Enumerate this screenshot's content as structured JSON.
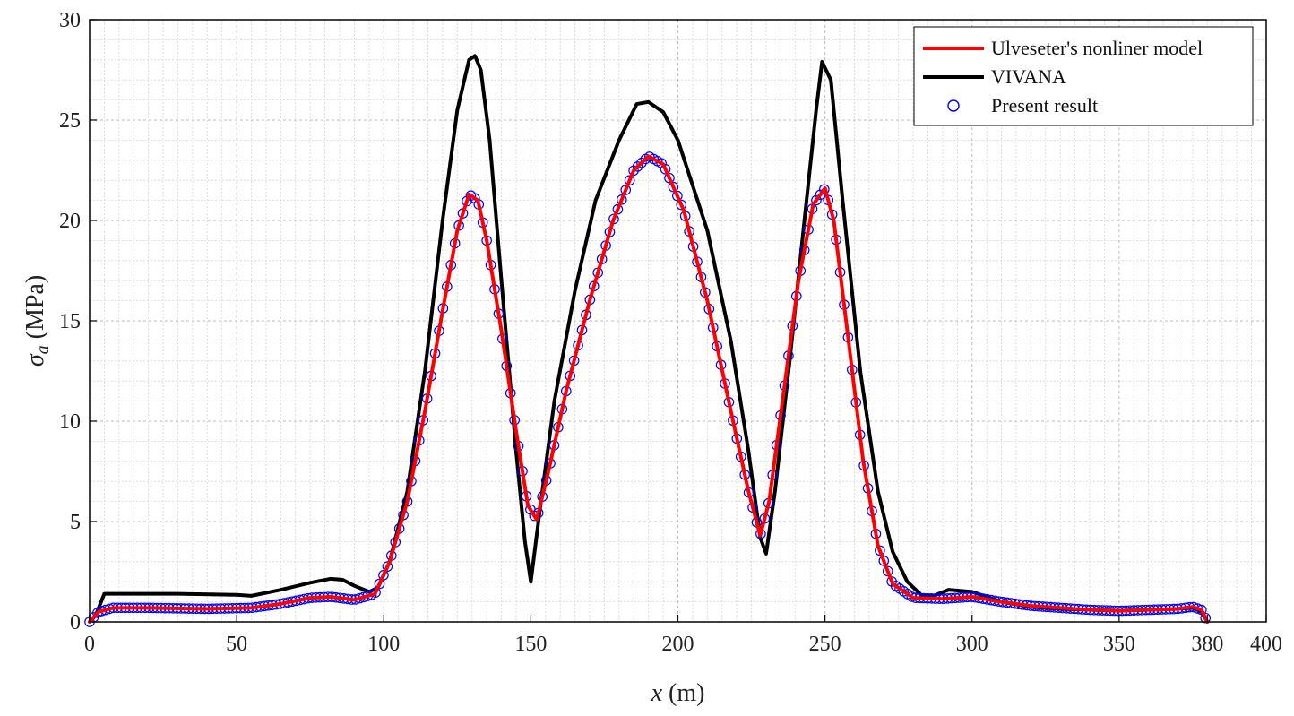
{
  "chart_data": {
    "type": "line",
    "title": "",
    "xlabel_var": "x",
    "xlabel_unit": " (m)",
    "ylabel_var": "σ",
    "ylabel_sub": "a",
    "ylabel_unit": " (MPa)",
    "xlim": [
      0,
      400
    ],
    "ylim": [
      0,
      30
    ],
    "x_ticks": [
      0,
      50,
      100,
      150,
      200,
      250,
      300,
      350,
      380,
      400
    ],
    "x_tick_labels": [
      "0",
      "50",
      "100",
      "150",
      "200",
      "250",
      "300",
      "350",
      "380",
      "400"
    ],
    "y_ticks": [
      0,
      5,
      10,
      15,
      20,
      25,
      30
    ],
    "y_tick_labels": [
      "0",
      "5",
      "10",
      "15",
      "20",
      "25",
      "30"
    ],
    "grid": true,
    "minor_grid": true,
    "legend_position": "top-right",
    "series": [
      {
        "name": "Ulveseter's nonliner model",
        "style": "line",
        "color": "#ff0000",
        "x": [
          0,
          3,
          8,
          20,
          40,
          55,
          65,
          75,
          82,
          90,
          97,
          102,
          108,
          114,
          120,
          125,
          129,
          132,
          135,
          140,
          145,
          149,
          152,
          156,
          162,
          170,
          178,
          185,
          190,
          195,
          202,
          210,
          218,
          224,
          228,
          231,
          236,
          241,
          246,
          250,
          253,
          258,
          263,
          268,
          273,
          280,
          290,
          300,
          310,
          320,
          330,
          340,
          350,
          360,
          370,
          375,
          378,
          380
        ],
        "y": [
          0,
          0.5,
          0.7,
          0.7,
          0.65,
          0.7,
          0.9,
          1.2,
          1.25,
          1.1,
          1.4,
          3.0,
          6.0,
          10.5,
          15.5,
          19.5,
          21.3,
          21.0,
          19.0,
          14.5,
          9.5,
          5.8,
          5.1,
          7.5,
          11.5,
          16.0,
          20.0,
          22.5,
          23.2,
          22.8,
          20.5,
          16.0,
          10.5,
          6.5,
          4.3,
          6.0,
          11.5,
          17.0,
          20.8,
          21.6,
          20.0,
          14.0,
          8.0,
          3.8,
          1.9,
          1.2,
          1.15,
          1.25,
          1.0,
          0.8,
          0.7,
          0.6,
          0.55,
          0.6,
          0.65,
          0.75,
          0.6,
          0
        ]
      },
      {
        "name": "VIVANA",
        "style": "line",
        "color": "#000000",
        "x": [
          0,
          2,
          5,
          10,
          30,
          50,
          55,
          65,
          75,
          82,
          86,
          90,
          95,
          98,
          102,
          108,
          114,
          120,
          125,
          129,
          131,
          133,
          136,
          140,
          145,
          148,
          150,
          153,
          158,
          165,
          172,
          180,
          186,
          190,
          195,
          200,
          210,
          218,
          224,
          228,
          230,
          233,
          238,
          243,
          247,
          249,
          252,
          256,
          262,
          268,
          273,
          278,
          283,
          287,
          292,
          300,
          310,
          320,
          330,
          340,
          350,
          360,
          370,
          375,
          378,
          380
        ],
        "y": [
          0,
          0.3,
          1.4,
          1.4,
          1.4,
          1.35,
          1.3,
          1.6,
          1.95,
          2.15,
          2.1,
          1.8,
          1.5,
          1.7,
          3.0,
          6.5,
          12.5,
          20.0,
          25.5,
          28.0,
          28.2,
          27.5,
          24.0,
          17.0,
          8.5,
          4.0,
          2.0,
          5.5,
          11.0,
          16.5,
          21.0,
          24.0,
          25.8,
          25.9,
          25.4,
          24.0,
          19.5,
          14.0,
          8.5,
          4.2,
          3.4,
          6.5,
          13.0,
          20.0,
          25.5,
          27.9,
          27.0,
          21.0,
          12.5,
          6.5,
          3.5,
          2.0,
          1.3,
          1.3,
          1.6,
          1.5,
          1.0,
          0.75,
          0.65,
          0.6,
          0.55,
          0.6,
          0.65,
          0.7,
          0.5,
          0
        ]
      },
      {
        "name": "Present result",
        "style": "marker",
        "color": "#0000ff"
      }
    ]
  }
}
